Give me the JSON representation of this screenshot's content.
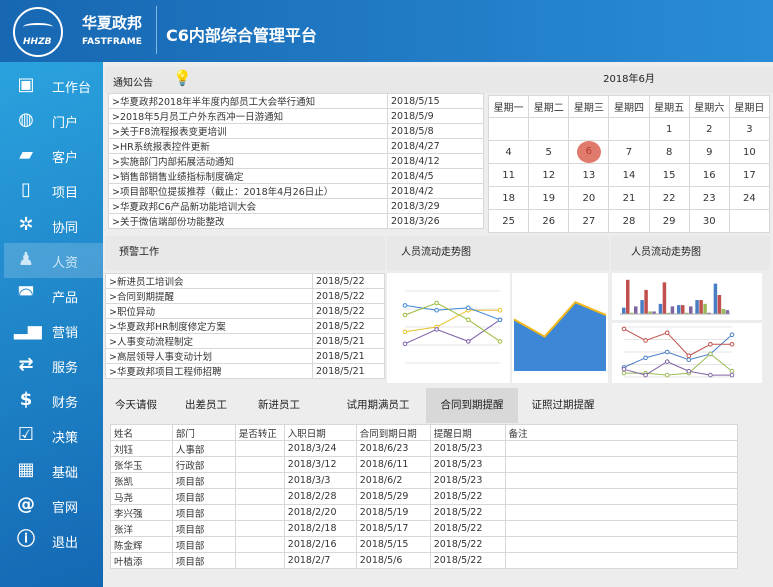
{
  "header": {
    "logo_text": "HHZB",
    "brand": "华夏政邦",
    "brand_en": "FASTFRAME",
    "title": "C6内部综合管理平台"
  },
  "sidebar": {
    "items": [
      {
        "label": "工作台",
        "icon": "monitor-rss-icon",
        "glyph": "▣"
      },
      {
        "label": "门户",
        "icon": "globe-icon",
        "glyph": "◍"
      },
      {
        "label": "客户",
        "icon": "chat-bubbles-icon",
        "glyph": "▰"
      },
      {
        "label": "项目",
        "icon": "contact-card-icon",
        "glyph": "▯"
      },
      {
        "label": "协同",
        "icon": "gears-icon",
        "glyph": "✲"
      },
      {
        "label": "人资",
        "icon": "user-add-icon",
        "glyph": "♟",
        "active": true
      },
      {
        "label": "产品",
        "icon": "gamepad-icon",
        "glyph": "◚"
      },
      {
        "label": "营销",
        "icon": "signal-bars-icon",
        "glyph": "▂▅"
      },
      {
        "label": "服务",
        "icon": "people-exchange-icon",
        "glyph": "⇄"
      },
      {
        "label": "财务",
        "icon": "dollar-icon",
        "glyph": "$"
      },
      {
        "label": "决策",
        "icon": "checkbox-icon",
        "glyph": "☑"
      },
      {
        "label": "基础",
        "icon": "grid-icon",
        "glyph": "▦"
      },
      {
        "label": "官网",
        "icon": "at-icon",
        "glyph": "@"
      },
      {
        "label": "退出",
        "icon": "info-icon",
        "glyph": "ⓘ"
      }
    ]
  },
  "notice": {
    "title": "通知公告",
    "icon": "lightbulb-icon",
    "items": [
      [
        ">华夏政邦2018年半年度内部员工大会举行通知",
        "2018/5/15"
      ],
      [
        ">2018年5月员工户外东西冲一日游通知",
        "2018/5/9"
      ],
      [
        ">关于F8流程报表变更培训",
        "2018/5/8"
      ],
      [
        ">HR系统报表控件更新",
        "2018/4/27"
      ],
      [
        ">实施部门内部拓展活动通知",
        "2018/4/12"
      ],
      [
        ">销售部销售业绩指标制度确定",
        "2018/4/5"
      ],
      [
        ">项目部职位提拔推荐（截止：2018年4月26日止）",
        "2018/4/2"
      ],
      [
        ">华夏政邦C6产品新功能培训大会",
        "2018/3/29"
      ],
      [
        ">关于微信端部份功能整改",
        "2018/3/26"
      ]
    ]
  },
  "calendar": {
    "title": "2018年6月",
    "today": "6",
    "weekdays": [
      "星期一",
      "星期二",
      "星期三",
      "星期四",
      "星期五",
      "星期六",
      "星期日"
    ],
    "weeks": [
      [
        "",
        "",
        "",
        "",
        "1",
        "2",
        "3"
      ],
      [
        "4",
        "5",
        "6",
        "7",
        "8",
        "9",
        "10"
      ],
      [
        "11",
        "12",
        "13",
        "14",
        "15",
        "16",
        "17"
      ],
      [
        "18",
        "19",
        "20",
        "21",
        "22",
        "23",
        "24"
      ],
      [
        "25",
        "26",
        "27",
        "28",
        "29",
        "30",
        ""
      ]
    ]
  },
  "warning": {
    "title": "预警工作",
    "items": [
      [
        ">新进员工培训会",
        "2018/5/22"
      ],
      [
        ">合同到期提醒",
        "2018/5/22"
      ],
      [
        ">职位异动",
        "2018/5/22"
      ],
      [
        ">华夏政邦HR制度修定方案",
        "2018/5/22"
      ],
      [
        ">人事变动流程制定",
        "2018/5/21"
      ],
      [
        ">高层领导人事变动计划",
        "2018/5/21"
      ],
      [
        ">华夏政邦项目工程师招聘",
        "2018/5/21"
      ]
    ]
  },
  "flow": {
    "title1": "人员流动走势图",
    "title2": "人员流动走势图"
  },
  "charts": {
    "line1": {
      "type": "line",
      "colors": [
        "#e8c12c",
        "#7b5ea8",
        "#3d87d6",
        "#9bbb3c"
      ],
      "series": [
        [
          13,
          15,
          22,
          22
        ],
        [
          8,
          14,
          9,
          18
        ],
        [
          24,
          22,
          23,
          18
        ],
        [
          20,
          25,
          18,
          9
        ]
      ],
      "ylim": [
        0,
        30
      ]
    },
    "area": {
      "type": "area",
      "color": "#3d87d6",
      "edge": "#f0b81c",
      "values": [
        120,
        80,
        160,
        130
      ],
      "ylim": [
        0,
        200
      ]
    },
    "bar": {
      "type": "bar",
      "colors": [
        "#4a7ec4",
        "#c0504d",
        "#9bbb59",
        "#8064a2"
      ],
      "series": [
        [
          50,
          110,
          80,
          70,
          110,
          240
        ],
        [
          270,
          190,
          250,
          70,
          110,
          150
        ],
        [
          10,
          20,
          10,
          10,
          80,
          40
        ],
        [
          60,
          20,
          60,
          60,
          10,
          30
        ]
      ],
      "ylim": [
        0,
        300
      ]
    },
    "line2": {
      "type": "line",
      "colors": [
        "#4a7ec4",
        "#c0504d",
        "#9bbb59",
        "#8064a2"
      ],
      "series": [
        [
          50,
          100,
          130,
          90,
          120,
          220
        ],
        [
          250,
          190,
          230,
          110,
          170,
          170
        ],
        [
          20,
          20,
          10,
          20,
          120,
          30
        ],
        [
          40,
          10,
          80,
          30,
          10,
          10
        ]
      ],
      "ylim": [
        0,
        260
      ]
    }
  },
  "tabs": [
    "今天请假",
    "出差员工",
    "新进员工",
    "试用期满员工",
    "合同到期提醒",
    "证照过期提醒"
  ],
  "active_tab": 4,
  "contract": {
    "headers": [
      "姓名",
      "部门",
      "是否转正",
      "入职日期",
      "合同到期日期",
      "提醒日期",
      "备注"
    ],
    "rows": [
      [
        "刘钰",
        "人事部",
        "",
        "2018/3/24",
        "2018/6/23",
        "2018/5/23",
        ""
      ],
      [
        "张华玉",
        "行政部",
        "",
        "2018/3/12",
        "2018/6/11",
        "2018/5/23",
        ""
      ],
      [
        "张凯",
        "项目部",
        "",
        "2018/3/3",
        "2018/6/2",
        "2018/5/23",
        ""
      ],
      [
        "马尧",
        "项目部",
        "",
        "2018/2/28",
        "2018/5/29",
        "2018/5/22",
        ""
      ],
      [
        "李兴强",
        "项目部",
        "",
        "2018/2/20",
        "2018/5/19",
        "2018/5/22",
        ""
      ],
      [
        "张洋",
        "项目部",
        "",
        "2018/2/18",
        "2018/5/17",
        "2018/5/22",
        ""
      ],
      [
        "陈金辉",
        "项目部",
        "",
        "2018/2/16",
        "2018/5/15",
        "2018/5/22",
        ""
      ],
      [
        "叶植添",
        "项目部",
        "",
        "2018/2/7",
        "2018/5/6",
        "2018/5/22",
        ""
      ]
    ]
  }
}
